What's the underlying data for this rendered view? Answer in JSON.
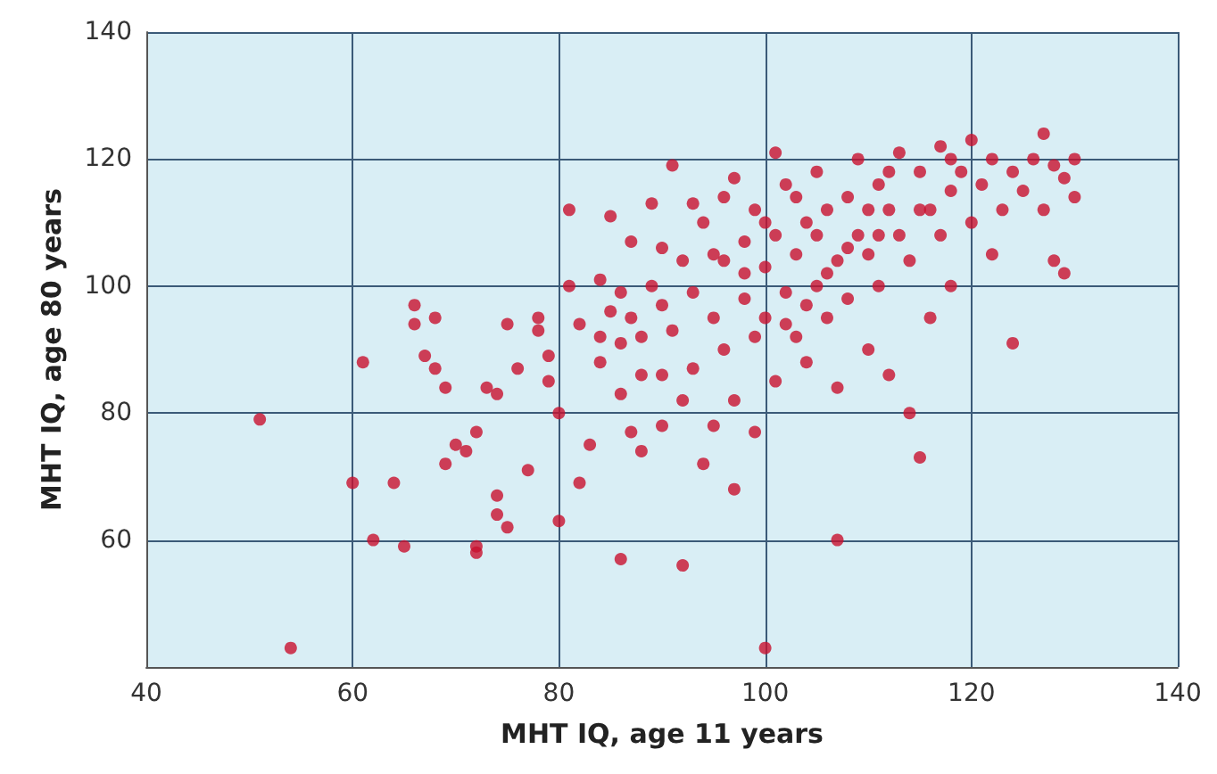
{
  "chart_data": {
    "type": "scatter",
    "xlabel": "MHT IQ, age 11 years",
    "ylabel": "MHT IQ, age 80 years",
    "xlim": [
      40,
      140
    ],
    "ylim": [
      40,
      140
    ],
    "xticks": [
      40,
      60,
      80,
      100,
      120,
      140
    ],
    "yticks": [
      {
        "value": 40,
        "label": null
      },
      60,
      80,
      100,
      120,
      140
    ],
    "grid": true,
    "marker": "circle",
    "series": [
      {
        "color": "#c8102e",
        "x": [
          51,
          54,
          60,
          61,
          62,
          64,
          65,
          66,
          66,
          67,
          68,
          68,
          69,
          69,
          70,
          71,
          72,
          72,
          72,
          73,
          74,
          74,
          74,
          75,
          75,
          76,
          77,
          78,
          78,
          79,
          79,
          80,
          80,
          81,
          81,
          82,
          82,
          83,
          84,
          84,
          85,
          85,
          86,
          86,
          86,
          87,
          87,
          88,
          88,
          88,
          89,
          89,
          90,
          90,
          90,
          91,
          91,
          92,
          92,
          92,
          93,
          93,
          94,
          94,
          95,
          95,
          96,
          96,
          96,
          97,
          97,
          98,
          98,
          99,
          99,
          99,
          100,
          100,
          100,
          101,
          101,
          101,
          102,
          102,
          103,
          103,
          104,
          104,
          105,
          105,
          106,
          106,
          107,
          107,
          107,
          108,
          108,
          109,
          109,
          110,
          110,
          111,
          111,
          112,
          112,
          113,
          113,
          114,
          114,
          115,
          115,
          116,
          116,
          117,
          117,
          118,
          118,
          119,
          120,
          120,
          121,
          122,
          122,
          123,
          124,
          124,
          125,
          126,
          127,
          127,
          128,
          128,
          129,
          129,
          130,
          130,
          95,
          105,
          110,
          115,
          100,
          98,
          103,
          108,
          112,
          90,
          86,
          84,
          87,
          93,
          97,
          102,
          106,
          111,
          118,
          104
        ],
        "values": [
          79,
          43,
          69,
          88,
          60,
          69,
          59,
          97,
          94,
          89,
          87,
          95,
          84,
          72,
          75,
          74,
          77,
          59,
          58,
          84,
          83,
          67,
          64,
          62,
          94,
          87,
          71,
          95,
          93,
          89,
          85,
          63,
          80,
          112,
          100,
          69,
          94,
          75,
          88,
          101,
          96,
          111,
          57,
          83,
          91,
          77,
          107,
          92,
          74,
          86,
          100,
          113,
          97,
          78,
          86,
          119,
          93,
          56,
          104,
          82,
          99,
          87,
          110,
          72,
          95,
          78,
          104,
          114,
          90,
          82,
          68,
          98,
          107,
          92,
          112,
          77,
          103,
          95,
          43,
          121,
          108,
          85,
          99,
          116,
          105,
          92,
          110,
          88,
          100,
          118,
          112,
          95,
          60,
          104,
          84,
          114,
          98,
          108,
          120,
          90,
          105,
          116,
          100,
          112,
          86,
          108,
          121,
          80,
          104,
          73,
          118,
          112,
          95,
          108,
          122,
          115,
          100,
          118,
          110,
          123,
          116,
          120,
          105,
          112,
          91,
          118,
          115,
          120,
          124,
          112,
          104,
          119,
          102,
          117,
          120,
          114,
          105,
          108,
          112,
          112,
          110,
          102,
          114,
          106,
          118,
          106,
          99,
          92,
          95,
          113,
          117,
          94,
          102,
          108,
          120,
          97
        ]
      }
    ]
  }
}
